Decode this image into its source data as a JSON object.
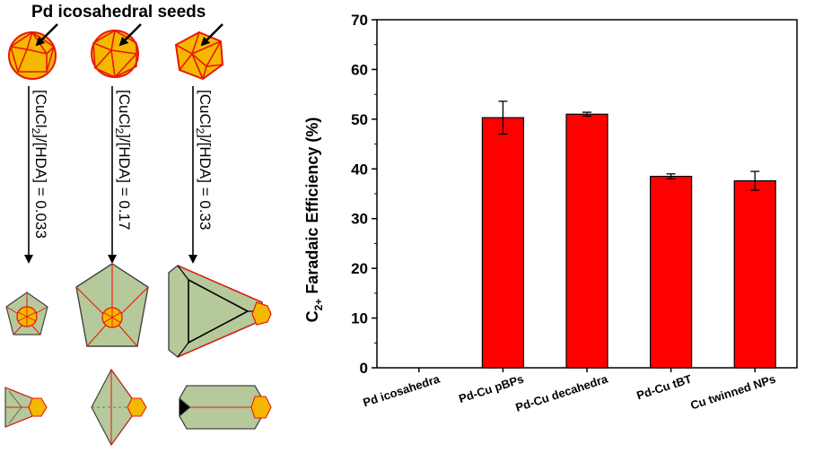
{
  "scheme": {
    "title": "Pd icosahedral seeds",
    "conditions": [
      {
        "prefix": "[CuCl",
        "sub": "2",
        "suffix": "]/[HDA] = 0.033"
      },
      {
        "prefix": "[CuCl",
        "sub": "2",
        "suffix": "]/[HDA] = 0.17"
      },
      {
        "prefix": "[CuCl",
        "sub": "2",
        "suffix": "]/[HDA] = 0.33"
      }
    ],
    "colors": {
      "seed": "#f5b800",
      "seed_edge": "#e8180c",
      "shell": "#b5c99a",
      "shell_edge": "#444444"
    }
  },
  "chart_data": {
    "type": "bar",
    "categories": [
      "Pd icosahedra",
      "Pd-Cu pBPs",
      "Pd-Cu decahedra",
      "Pd-Cu tBT",
      "Cu twinned NPs"
    ],
    "values": [
      0,
      50.3,
      51.0,
      38.5,
      37.6
    ],
    "errors": [
      0,
      3.3,
      0.4,
      0.5,
      1.9
    ],
    "ylabel": {
      "main": "C",
      "sub": "2+",
      "rest": " Faradaic Efficiency (%)"
    },
    "ylim": [
      0,
      70
    ],
    "yticks": [
      0,
      10,
      20,
      30,
      40,
      50,
      60,
      70
    ],
    "grid": false,
    "legend": "none",
    "bar_color": "#ff0000"
  }
}
